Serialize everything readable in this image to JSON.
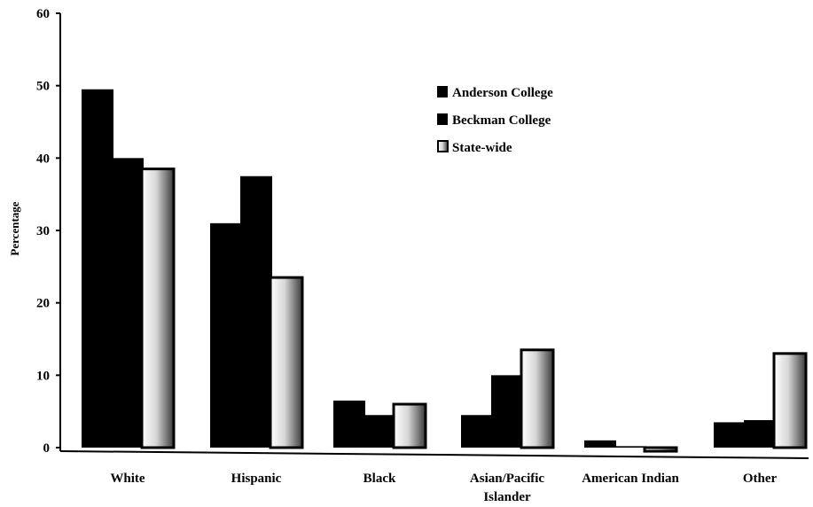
{
  "chart_data": {
    "type": "bar",
    "title": "",
    "xlabel": "",
    "ylabel": "Percentage",
    "ylim": [
      0,
      60
    ],
    "yticks": [
      "0",
      "10",
      "20",
      "30",
      "40",
      "50",
      "60"
    ],
    "categories": [
      [
        "White"
      ],
      [
        "Hispanic"
      ],
      [
        "Black"
      ],
      [
        "Asian/Pacific",
        "Islander"
      ],
      [
        "American Indian"
      ],
      [
        "Other"
      ]
    ],
    "series": [
      {
        "name": "Anderson College",
        "values": [
          49.5,
          31,
          6.5,
          4.5,
          1,
          3.5
        ]
      },
      {
        "name": "Beckman College",
        "values": [
          40,
          37.5,
          4.5,
          10,
          0.2,
          3.8
        ]
      },
      {
        "name": "State-wide",
        "values": [
          38.5,
          23.5,
          6,
          13.5,
          -0.5,
          13
        ]
      }
    ],
    "legend_position": "top-right",
    "grid": false
  }
}
